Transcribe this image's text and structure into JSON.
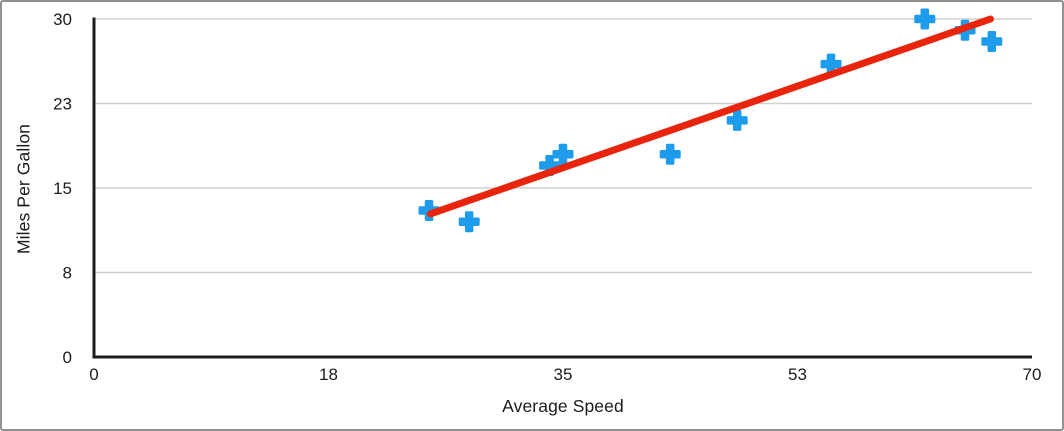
{
  "chart_data": {
    "type": "scatter",
    "title": "",
    "xlabel": "Average Speed",
    "ylabel": "Miles Per Gallon",
    "xlim": [
      0,
      70
    ],
    "ylim": [
      0,
      30
    ],
    "x_ticks": [
      {
        "value": 0,
        "label": "0"
      },
      {
        "value": 17.5,
        "label": "18"
      },
      {
        "value": 35,
        "label": "35"
      },
      {
        "value": 52.5,
        "label": "53"
      },
      {
        "value": 70,
        "label": "70"
      }
    ],
    "y_ticks": [
      {
        "value": 0,
        "label": "0"
      },
      {
        "value": 7.5,
        "label": "8"
      },
      {
        "value": 15,
        "label": "15"
      },
      {
        "value": 22.5,
        "label": "23"
      },
      {
        "value": 30,
        "label": "30"
      }
    ],
    "grid": "horizontal",
    "legend": "none",
    "series": [
      {
        "name": "Miles Per Gallon",
        "marker": "plus",
        "color": "#1E9CEB",
        "points": [
          {
            "x": 25,
            "y": 13
          },
          {
            "x": 28,
            "y": 12
          },
          {
            "x": 34,
            "y": 17
          },
          {
            "x": 35,
            "y": 18
          },
          {
            "x": 43,
            "y": 18
          },
          {
            "x": 48,
            "y": 21
          },
          {
            "x": 55,
            "y": 26
          },
          {
            "x": 62,
            "y": 30
          },
          {
            "x": 65,
            "y": 29
          },
          {
            "x": 67,
            "y": 28
          }
        ]
      }
    ],
    "trendline": {
      "type": "linear",
      "x1": 25.1,
      "y1": 12.7,
      "x2": 66.9,
      "y2": 30,
      "color": "#E8240D",
      "width": 7
    },
    "colors": {
      "axis": "#1C1C1C",
      "gridline": "#CFCFCF",
      "text": "#1C1C1C",
      "frame_border": "#919191",
      "background": "#FFFFFF"
    }
  }
}
